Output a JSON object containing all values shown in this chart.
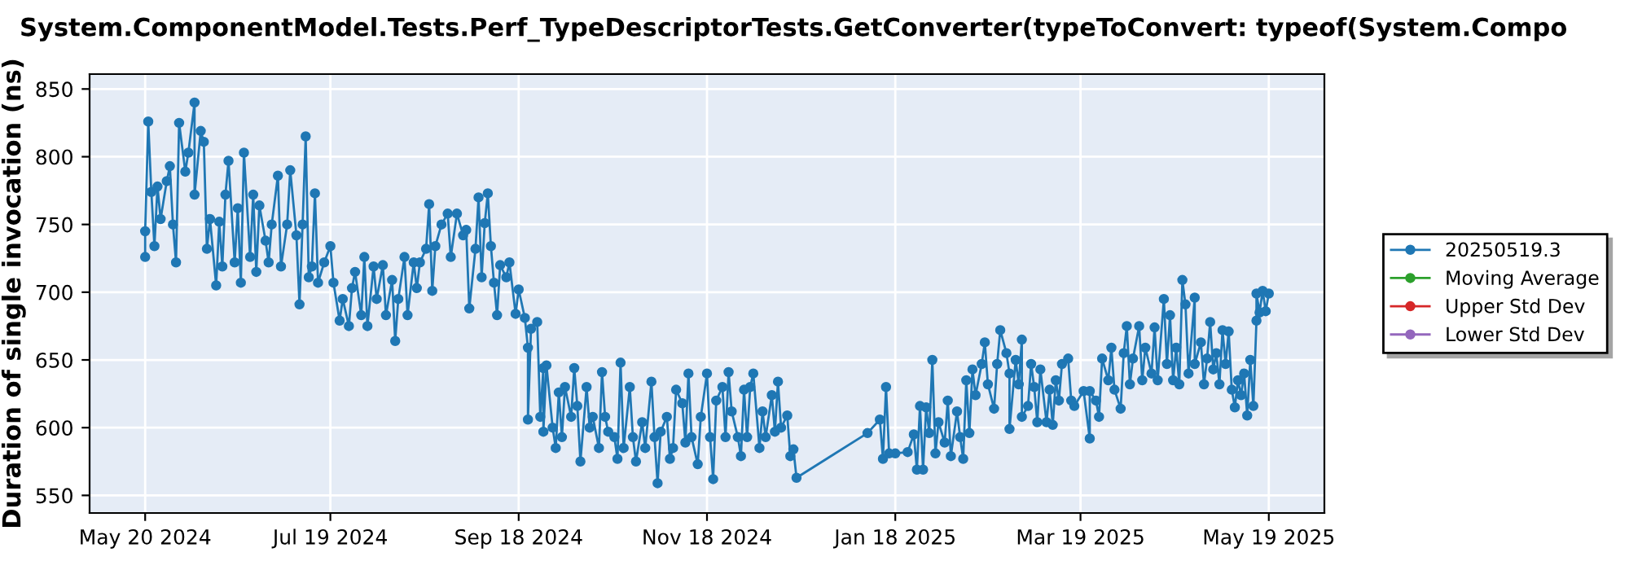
{
  "chart_data": {
    "type": "line",
    "title": "System.ComponentModel.Tests.Perf_TypeDescriptorTests.GetConverter(typeToConvert: typeof(System.Compo",
    "ylabel": "Duration of single invocation (ns)",
    "xlim": [
      "2024-05-02",
      "2025-06-06"
    ],
    "xticks": [
      {
        "value": "2024-05-20",
        "label": "May 20 2024"
      },
      {
        "value": "2024-07-19",
        "label": "Jul 19 2024"
      },
      {
        "value": "2024-09-18",
        "label": "Sep 18 2024"
      },
      {
        "value": "2024-11-18",
        "label": "Nov 18 2024"
      },
      {
        "value": "2025-01-18",
        "label": "Jan 18 2025"
      },
      {
        "value": "2025-03-19",
        "label": "Mar 19 2025"
      },
      {
        "value": "2025-05-19",
        "label": "May 19 2025"
      }
    ],
    "ylim": [
      537,
      861
    ],
    "yticks": [
      550,
      600,
      650,
      700,
      750,
      800,
      850
    ],
    "grid": true,
    "legend": "right",
    "marker": "circle",
    "line_style": "solid",
    "series": [
      {
        "name": "20250519.3",
        "color": "#1f77b4",
        "x": [
          "2024-05-20",
          "2024-05-20",
          "2024-05-21",
          "2024-05-22",
          "2024-05-23",
          "2024-05-24",
          "2024-05-25",
          "2024-05-27",
          "2024-05-28",
          "2024-05-29",
          "2024-05-30",
          "2024-05-31",
          "2024-06-02",
          "2024-06-03",
          "2024-06-05",
          "2024-06-05",
          "2024-06-07",
          "2024-06-08",
          "2024-06-09",
          "2024-06-10",
          "2024-06-12",
          "2024-06-13",
          "2024-06-14",
          "2024-06-15",
          "2024-06-16",
          "2024-06-18",
          "2024-06-19",
          "2024-06-20",
          "2024-06-21",
          "2024-06-23",
          "2024-06-24",
          "2024-06-25",
          "2024-06-26",
          "2024-06-28",
          "2024-06-29",
          "2024-06-30",
          "2024-07-02",
          "2024-07-03",
          "2024-07-05",
          "2024-07-06",
          "2024-07-08",
          "2024-07-09",
          "2024-07-10",
          "2024-07-11",
          "2024-07-12",
          "2024-07-13",
          "2024-07-14",
          "2024-07-15",
          "2024-07-17",
          "2024-07-19",
          "2024-07-20",
          "2024-07-22",
          "2024-07-23",
          "2024-07-25",
          "2024-07-26",
          "2024-07-27",
          "2024-07-29",
          "2024-07-30",
          "2024-07-31",
          "2024-08-02",
          "2024-08-03",
          "2024-08-05",
          "2024-08-06",
          "2024-08-08",
          "2024-08-09",
          "2024-08-10",
          "2024-08-12",
          "2024-08-13",
          "2024-08-15",
          "2024-08-16",
          "2024-08-17",
          "2024-08-19",
          "2024-08-20",
          "2024-08-21",
          "2024-08-22",
          "2024-08-24",
          "2024-08-26",
          "2024-08-27",
          "2024-08-29",
          "2024-08-31",
          "2024-09-01",
          "2024-09-02",
          "2024-09-04",
          "2024-09-05",
          "2024-09-06",
          "2024-09-07",
          "2024-09-08",
          "2024-09-09",
          "2024-09-10",
          "2024-09-11",
          "2024-09-12",
          "2024-09-14",
          "2024-09-15",
          "2024-09-17",
          "2024-09-18",
          "2024-09-20",
          "2024-09-21",
          "2024-09-21",
          "2024-09-22",
          "2024-09-24",
          "2024-09-25",
          "2024-09-26",
          "2024-09-26",
          "2024-09-27",
          "2024-09-29",
          "2024-09-30",
          "2024-10-01",
          "2024-10-02",
          "2024-10-03",
          "2024-10-05",
          "2024-10-06",
          "2024-10-07",
          "2024-10-08",
          "2024-10-10",
          "2024-10-11",
          "2024-10-12",
          "2024-10-14",
          "2024-10-15",
          "2024-10-16",
          "2024-10-17",
          "2024-10-19",
          "2024-10-20",
          "2024-10-21",
          "2024-10-22",
          "2024-10-24",
          "2024-10-25",
          "2024-10-26",
          "2024-10-28",
          "2024-10-29",
          "2024-10-31",
          "2024-11-01",
          "2024-11-02",
          "2024-11-03",
          "2024-11-05",
          "2024-11-06",
          "2024-11-07",
          "2024-11-08",
          "2024-11-10",
          "2024-11-11",
          "2024-11-12",
          "2024-11-13",
          "2024-11-15",
          "2024-11-16",
          "2024-11-18",
          "2024-11-19",
          "2024-11-20",
          "2024-11-21",
          "2024-11-23",
          "2024-11-24",
          "2024-11-25",
          "2024-11-26",
          "2024-11-28",
          "2024-11-29",
          "2024-11-30",
          "2024-12-01",
          "2024-12-02",
          "2024-12-03",
          "2024-12-05",
          "2024-12-06",
          "2024-12-07",
          "2024-12-09",
          "2024-12-10",
          "2024-12-11",
          "2024-12-12",
          "2024-12-14",
          "2024-12-15",
          "2024-12-16",
          "2024-12-17",
          "2025-01-09",
          "2025-01-13",
          "2025-01-14",
          "2025-01-15",
          "2025-01-16",
          "2025-01-18",
          "2025-01-22",
          "2025-01-24",
          "2025-01-25",
          "2025-01-26",
          "2025-01-27",
          "2025-01-28",
          "2025-01-29",
          "2025-01-30",
          "2025-01-31",
          "2025-02-01",
          "2025-02-03",
          "2025-02-04",
          "2025-02-05",
          "2025-02-07",
          "2025-02-08",
          "2025-02-09",
          "2025-02-10",
          "2025-02-11",
          "2025-02-12",
          "2025-02-13",
          "2025-02-15",
          "2025-02-16",
          "2025-02-17",
          "2025-02-19",
          "2025-02-20",
          "2025-02-21",
          "2025-02-23",
          "2025-02-24",
          "2025-02-24",
          "2025-02-26",
          "2025-02-27",
          "2025-02-28",
          "2025-02-28",
          "2025-03-02",
          "2025-03-03",
          "2025-03-04",
          "2025-03-05",
          "2025-03-06",
          "2025-03-08",
          "2025-03-09",
          "2025-03-10",
          "2025-03-11",
          "2025-03-12",
          "2025-03-13",
          "2025-03-15",
          "2025-03-16",
          "2025-03-17",
          "2025-03-20",
          "2025-03-22",
          "2025-03-22",
          "2025-03-24",
          "2025-03-25",
          "2025-03-26",
          "2025-03-28",
          "2025-03-29",
          "2025-03-30",
          "2025-04-01",
          "2025-04-02",
          "2025-04-03",
          "2025-04-04",
          "2025-04-05",
          "2025-04-07",
          "2025-04-08",
          "2025-04-09",
          "2025-04-11",
          "2025-04-12",
          "2025-04-13",
          "2025-04-15",
          "2025-04-16",
          "2025-04-17",
          "2025-04-18",
          "2025-04-19",
          "2025-04-20",
          "2025-04-21",
          "2025-04-22",
          "2025-04-23",
          "2025-04-25",
          "2025-04-25",
          "2025-04-27",
          "2025-04-28",
          "2025-04-29",
          "2025-04-30",
          "2025-05-01",
          "2025-05-02",
          "2025-05-03",
          "2025-05-04",
          "2025-05-05",
          "2025-05-06",
          "2025-05-07",
          "2025-05-08",
          "2025-05-09",
          "2025-05-10",
          "2025-05-11",
          "2025-05-12",
          "2025-05-13",
          "2025-05-14",
          "2025-05-15",
          "2025-05-15",
          "2025-05-16",
          "2025-05-17",
          "2025-05-18",
          "2025-05-19"
        ],
        "values": [
          726,
          745,
          826,
          774,
          734,
          778,
          754,
          782,
          793,
          750,
          722,
          825,
          789,
          803,
          840,
          772,
          819,
          811,
          732,
          754,
          705,
          752,
          719,
          772,
          797,
          722,
          762,
          707,
          803,
          726,
          772,
          715,
          764,
          738,
          722,
          750,
          786,
          719,
          750,
          790,
          742,
          691,
          750,
          815,
          711,
          719,
          773,
          707,
          722,
          734,
          707,
          679,
          695,
          675,
          703,
          715,
          683,
          726,
          675,
          719,
          695,
          720,
          683,
          709,
          664,
          695,
          726,
          683,
          722,
          703,
          722,
          732,
          765,
          701,
          734,
          750,
          758,
          726,
          758,
          742,
          746,
          688,
          732,
          770,
          711,
          751,
          773,
          734,
          707,
          683,
          720,
          711,
          722,
          684,
          702,
          681,
          659,
          606,
          673,
          678,
          608,
          644,
          597,
          646,
          600,
          585,
          626,
          593,
          630,
          608,
          644,
          616,
          575,
          630,
          600,
          608,
          585,
          641,
          608,
          597,
          593,
          577,
          648,
          585,
          630,
          593,
          575,
          604,
          585,
          634,
          593,
          559,
          597,
          608,
          577,
          585,
          628,
          618,
          589,
          640,
          593,
          573,
          608,
          640,
          593,
          562,
          620,
          630,
          593,
          641,
          612,
          593,
          579,
          628,
          593,
          630,
          640,
          585,
          612,
          593,
          624,
          597,
          634,
          600,
          609,
          579,
          584,
          563,
          596,
          606,
          577,
          630,
          581,
          581,
          582,
          595,
          569,
          616,
          569,
          615,
          596,
          650,
          581,
          604,
          589,
          620,
          579,
          612,
          593,
          577,
          635,
          596,
          643,
          624,
          647,
          663,
          632,
          614,
          647,
          672,
          655,
          640,
          599,
          650,
          632,
          665,
          608,
          616,
          647,
          630,
          604,
          643,
          604,
          628,
          602,
          635,
          620,
          647,
          651,
          620,
          616,
          627,
          592,
          627,
          620,
          608,
          651,
          635,
          659,
          628,
          614,
          655,
          675,
          632,
          651,
          675,
          635,
          659,
          640,
          674,
          635,
          695,
          647,
          683,
          635,
          659,
          632,
          709,
          691,
          640,
          696,
          647,
          663,
          632,
          651,
          678,
          643,
          655,
          632,
          672,
          647,
          671,
          628,
          615,
          635,
          624,
          640,
          609,
          650,
          616,
          679,
          699,
          685,
          701,
          686,
          699
        ]
      },
      {
        "name": "Moving Average",
        "color": "#2ca02c"
      },
      {
        "name": "Upper Std Dev",
        "color": "#d62728"
      },
      {
        "name": "Lower Std Dev",
        "color": "#9467bd"
      }
    ]
  }
}
